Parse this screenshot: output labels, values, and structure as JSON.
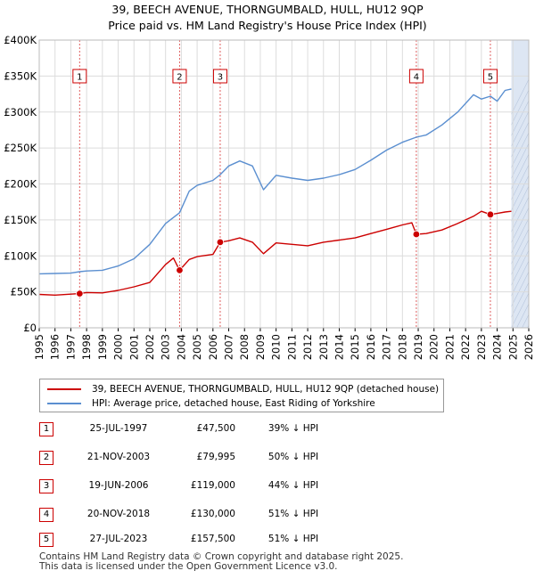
{
  "title": {
    "line1": "39, BEECH AVENUE, THORNGUMBALD, HULL, HU12 9QP",
    "line2": "Price paid vs. HM Land Registry's House Price Index (HPI)"
  },
  "chart_data": {
    "type": "line",
    "title": "39, BEECH AVENUE, THORNGUMBALD, HULL, HU12 9QP — Price paid vs. HM Land Registry's House Price Index (HPI)",
    "xlim": [
      1995,
      2026
    ],
    "ylim": [
      0,
      400000
    ],
    "ytick_values": [
      0,
      50000,
      100000,
      150000,
      200000,
      250000,
      300000,
      350000,
      400000
    ],
    "ytick_labels": [
      "£0",
      "£50K",
      "£100K",
      "£150K",
      "£200K",
      "£250K",
      "£300K",
      "£350K",
      "£400K"
    ],
    "xtick_labels": [
      "1995",
      "1996",
      "1997",
      "1998",
      "1999",
      "2000",
      "2001",
      "2002",
      "2003",
      "2004",
      "2005",
      "2006",
      "2007",
      "2008",
      "2009",
      "2010",
      "2011",
      "2012",
      "2013",
      "2014",
      "2015",
      "2016",
      "2017",
      "2018",
      "2019",
      "2020",
      "2021",
      "2022",
      "2023",
      "2024",
      "2025",
      "2026"
    ],
    "forecast_start": 2024.9,
    "grid": true,
    "colors": {
      "property": "#cc0000",
      "hpi": "#5b8fd0",
      "shade": "#dde6f3",
      "grid": "#dcdcdc"
    },
    "series": [
      {
        "name": "39, BEECH AVENUE, THORNGUMBALD, HULL, HU12 9QP (detached house)",
        "x": [
          1995.0,
          1996.0,
          1997.0,
          1997.56,
          1998.0,
          1999.0,
          2000.0,
          2001.0,
          2002.0,
          2003.0,
          2003.5,
          2003.89,
          2004.5,
          2005.0,
          2006.0,
          2006.46,
          2007.0,
          2007.7,
          2008.5,
          2009.2,
          2010.0,
          2011.0,
          2012.0,
          2013.0,
          2014.0,
          2015.0,
          2016.0,
          2017.0,
          2018.0,
          2018.6,
          2018.88,
          2019.5,
          2020.5,
          2021.5,
          2022.5,
          2023.0,
          2023.57,
          2024.0,
          2024.5,
          2024.9
        ],
        "values": [
          46500,
          45500,
          46800,
          47500,
          49000,
          48500,
          52000,
          57000,
          63000,
          88000,
          97000,
          79995,
          95000,
          99000,
          102000,
          119000,
          121000,
          125000,
          119000,
          103000,
          118000,
          116000,
          114000,
          119000,
          122000,
          125000,
          131000,
          137000,
          143000,
          146000,
          130000,
          131000,
          136000,
          145000,
          155000,
          162000,
          157500,
          159000,
          161000,
          162000
        ]
      },
      {
        "name": "HPI: Average price, detached house, East Riding of Yorkshire",
        "x": [
          1995.0,
          1996.0,
          1997.0,
          1997.56,
          1998.0,
          1999.0,
          2000.0,
          2001.0,
          2002.0,
          2003.0,
          2003.89,
          2004.5,
          2005.0,
          2006.0,
          2006.46,
          2007.0,
          2007.7,
          2008.5,
          2009.2,
          2010.0,
          2011.0,
          2012.0,
          2013.0,
          2014.0,
          2015.0,
          2016.0,
          2017.0,
          2018.0,
          2018.88,
          2019.5,
          2020.5,
          2021.5,
          2022.5,
          2023.0,
          2023.57,
          2024.0,
          2024.5,
          2024.9
        ],
        "values": [
          75000,
          75500,
          76000,
          78000,
          79000,
          80000,
          86000,
          96000,
          116000,
          145000,
          160000,
          190000,
          198000,
          205000,
          213000,
          225000,
          232000,
          225000,
          192000,
          212000,
          208000,
          205000,
          208000,
          213000,
          220000,
          233000,
          247000,
          258000,
          265000,
          268000,
          282000,
          300000,
          324000,
          318000,
          322000,
          315000,
          330000,
          332000
        ]
      }
    ],
    "sales": [
      {
        "num": "1",
        "date": "25-JUL-1997",
        "price": "£47,500",
        "hpi": "39% ↓ HPI",
        "x": 1997.56,
        "value": 47500
      },
      {
        "num": "2",
        "date": "21-NOV-2003",
        "price": "£79,995",
        "hpi": "50% ↓ HPI",
        "x": 2003.89,
        "value": 79995
      },
      {
        "num": "3",
        "date": "19-JUN-2006",
        "price": "£119,000",
        "hpi": "44% ↓ HPI",
        "x": 2006.46,
        "value": 119000
      },
      {
        "num": "4",
        "date": "20-NOV-2018",
        "price": "£130,000",
        "hpi": "51% ↓ HPI",
        "x": 2018.88,
        "value": 130000
      },
      {
        "num": "5",
        "date": "27-JUL-2023",
        "price": "£157,500",
        "hpi": "51% ↓ HPI",
        "x": 2023.57,
        "value": 157500
      }
    ]
  },
  "legend": {
    "property_label": "39, BEECH AVENUE, THORNGUMBALD, HULL, HU12 9QP (detached house)",
    "hpi_label": "HPI: Average price, detached house, East Riding of Yorkshire"
  },
  "footer": {
    "line1": "Contains HM Land Registry data © Crown copyright and database right 2025.",
    "line2": "This data is licensed under the Open Government Licence v3.0."
  }
}
